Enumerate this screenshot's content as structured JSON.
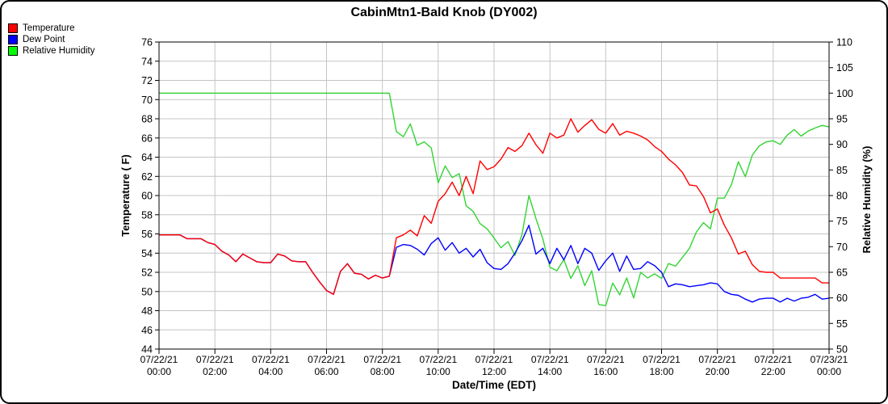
{
  "window_title": "CabinMtn1-Bald Knob (DY002)",
  "legend": [
    {
      "label": "Temperature",
      "color": "#ff0000"
    },
    {
      "label": "Dew Point",
      "color": "#0000ff"
    },
    {
      "label": "Relative Humidity",
      "color": "#00ff00"
    }
  ],
  "colors": {
    "grid": "#c4c4c4",
    "axis": "#000000",
    "background": "#ffffff",
    "temperature_line": "#ff0000",
    "dew_point_line": "#0000ff",
    "humidity_line": "#33d433"
  },
  "chart_data": {
    "type": "line",
    "title": "CabinMtn1-Bald Knob (DY002)",
    "grid": true,
    "legend_position": "top-left",
    "sample_interval_hours": 0.25,
    "x_axis": {
      "label": "Date/Time (EDT)",
      "hours_span": 24,
      "tick_interval_hours": 2,
      "ticks": [
        {
          "date": "07/22/21",
          "time": "00:00"
        },
        {
          "date": "07/22/21",
          "time": "02:00"
        },
        {
          "date": "07/22/21",
          "time": "04:00"
        },
        {
          "date": "07/22/21",
          "time": "06:00"
        },
        {
          "date": "07/22/21",
          "time": "08:00"
        },
        {
          "date": "07/22/21",
          "time": "10:00"
        },
        {
          "date": "07/22/21",
          "time": "12:00"
        },
        {
          "date": "07/22/21",
          "time": "14:00"
        },
        {
          "date": "07/22/21",
          "time": "16:00"
        },
        {
          "date": "07/22/21",
          "time": "18:00"
        },
        {
          "date": "07/22/21",
          "time": "20:00"
        },
        {
          "date": "07/22/21",
          "time": "22:00"
        },
        {
          "date": "07/23/21",
          "time": "00:00"
        }
      ]
    },
    "y_left": {
      "label": "Temperature ( F)",
      "min": 44,
      "max": 76,
      "tick_step": 2,
      "ticks": [
        76,
        74,
        72,
        70,
        68,
        66,
        64,
        62,
        60,
        58,
        56,
        54,
        52,
        50,
        48,
        46,
        44
      ]
    },
    "y_right": {
      "label": "Relative Humidity (%)",
      "min": 50,
      "max": 110,
      "tick_step": 5,
      "ticks": [
        110,
        105,
        100,
        95,
        90,
        85,
        80,
        75,
        70,
        65,
        60,
        55,
        50
      ]
    },
    "series": [
      {
        "name": "Temperature",
        "axis": "left",
        "color": "#ff0000",
        "values": [
          55.9,
          55.9,
          55.9,
          55.9,
          55.5,
          55.5,
          55.5,
          55.1,
          54.9,
          54.2,
          53.8,
          53.1,
          53.9,
          53.5,
          53.1,
          53.0,
          53.0,
          53.9,
          53.7,
          53.2,
          53.1,
          53.1,
          52.0,
          51.0,
          50.1,
          49.7,
          52.1,
          52.9,
          51.9,
          51.8,
          51.3,
          51.7,
          51.4,
          51.6,
          55.6,
          55.9,
          56.4,
          55.8,
          57.9,
          57.1,
          59.4,
          60.2,
          61.4,
          60.0,
          62.0,
          60.2,
          63.6,
          62.7,
          63.0,
          63.8,
          65.0,
          64.6,
          65.2,
          66.5,
          65.3,
          64.4,
          66.5,
          66.0,
          66.3,
          68.0,
          66.6,
          67.3,
          67.9,
          66.9,
          66.5,
          67.5,
          66.3,
          66.7,
          66.5,
          66.2,
          65.8,
          65.1,
          64.6,
          63.8,
          63.2,
          62.4,
          61.1,
          61.0,
          59.9,
          58.2,
          58.6,
          56.9,
          55.6,
          53.9,
          54.2,
          52.8,
          52.1,
          52.0,
          52.0,
          51.4,
          51.4,
          51.4,
          51.4,
          51.4,
          51.4,
          50.9,
          50.9
        ]
      },
      {
        "name": "Dew Point",
        "axis": "left",
        "color": "#0000ff",
        "values": [
          55.9,
          55.9,
          55.9,
          55.9,
          55.5,
          55.5,
          55.5,
          55.1,
          54.9,
          54.2,
          53.8,
          53.1,
          53.9,
          53.5,
          53.1,
          53.0,
          53.0,
          53.9,
          53.7,
          53.2,
          53.1,
          53.1,
          52.0,
          51.0,
          50.1,
          49.7,
          52.1,
          52.9,
          51.9,
          51.8,
          51.3,
          51.7,
          51.4,
          51.6,
          54.6,
          54.9,
          54.8,
          54.4,
          53.8,
          55.0,
          55.6,
          54.3,
          55.1,
          54.0,
          54.5,
          53.6,
          54.4,
          53.0,
          52.4,
          52.3,
          52.9,
          54.0,
          55.3,
          56.9,
          53.9,
          54.5,
          52.9,
          54.5,
          53.3,
          54.8,
          52.9,
          54.5,
          54.0,
          52.2,
          53.2,
          54.0,
          52.1,
          53.7,
          52.3,
          52.4,
          53.1,
          52.7,
          52.0,
          50.5,
          50.8,
          50.7,
          50.5,
          50.6,
          50.7,
          50.9,
          50.8,
          50.0,
          49.7,
          49.6,
          49.2,
          48.9,
          49.2,
          49.3,
          49.3,
          48.9,
          49.3,
          49.0,
          49.3,
          49.4,
          49.7,
          49.2,
          49.3
        ]
      },
      {
        "name": "Relative Humidity",
        "axis": "right",
        "color": "#33d433",
        "values": [
          100,
          100,
          100,
          100,
          100,
          100,
          100,
          100,
          100,
          100,
          100,
          100,
          100,
          100,
          100,
          100,
          100,
          100,
          100,
          100,
          100,
          100,
          100,
          100,
          100,
          100,
          100,
          100,
          100,
          100,
          100,
          100,
          100,
          100,
          92.5,
          91.5,
          94.0,
          89.8,
          90.5,
          89.3,
          82.5,
          85.8,
          83.5,
          84.3,
          78.0,
          76.9,
          74.5,
          73.5,
          71.7,
          69.8,
          71.0,
          68.3,
          72.4,
          80.0,
          75.5,
          71.5,
          66.0,
          65.3,
          67.5,
          63.8,
          66.3,
          62.4,
          65.3,
          58.7,
          58.5,
          62.9,
          60.6,
          63.9,
          60.0,
          65.0,
          63.9,
          64.7,
          63.8,
          66.7,
          66.2,
          67.9,
          69.7,
          72.9,
          74.7,
          73.5,
          79.5,
          79.5,
          82.1,
          86.6,
          83.7,
          87.9,
          89.7,
          90.5,
          90.7,
          90.0,
          91.8,
          92.9,
          91.6,
          92.6,
          93.2,
          93.7,
          93.4
        ]
      }
    ]
  }
}
